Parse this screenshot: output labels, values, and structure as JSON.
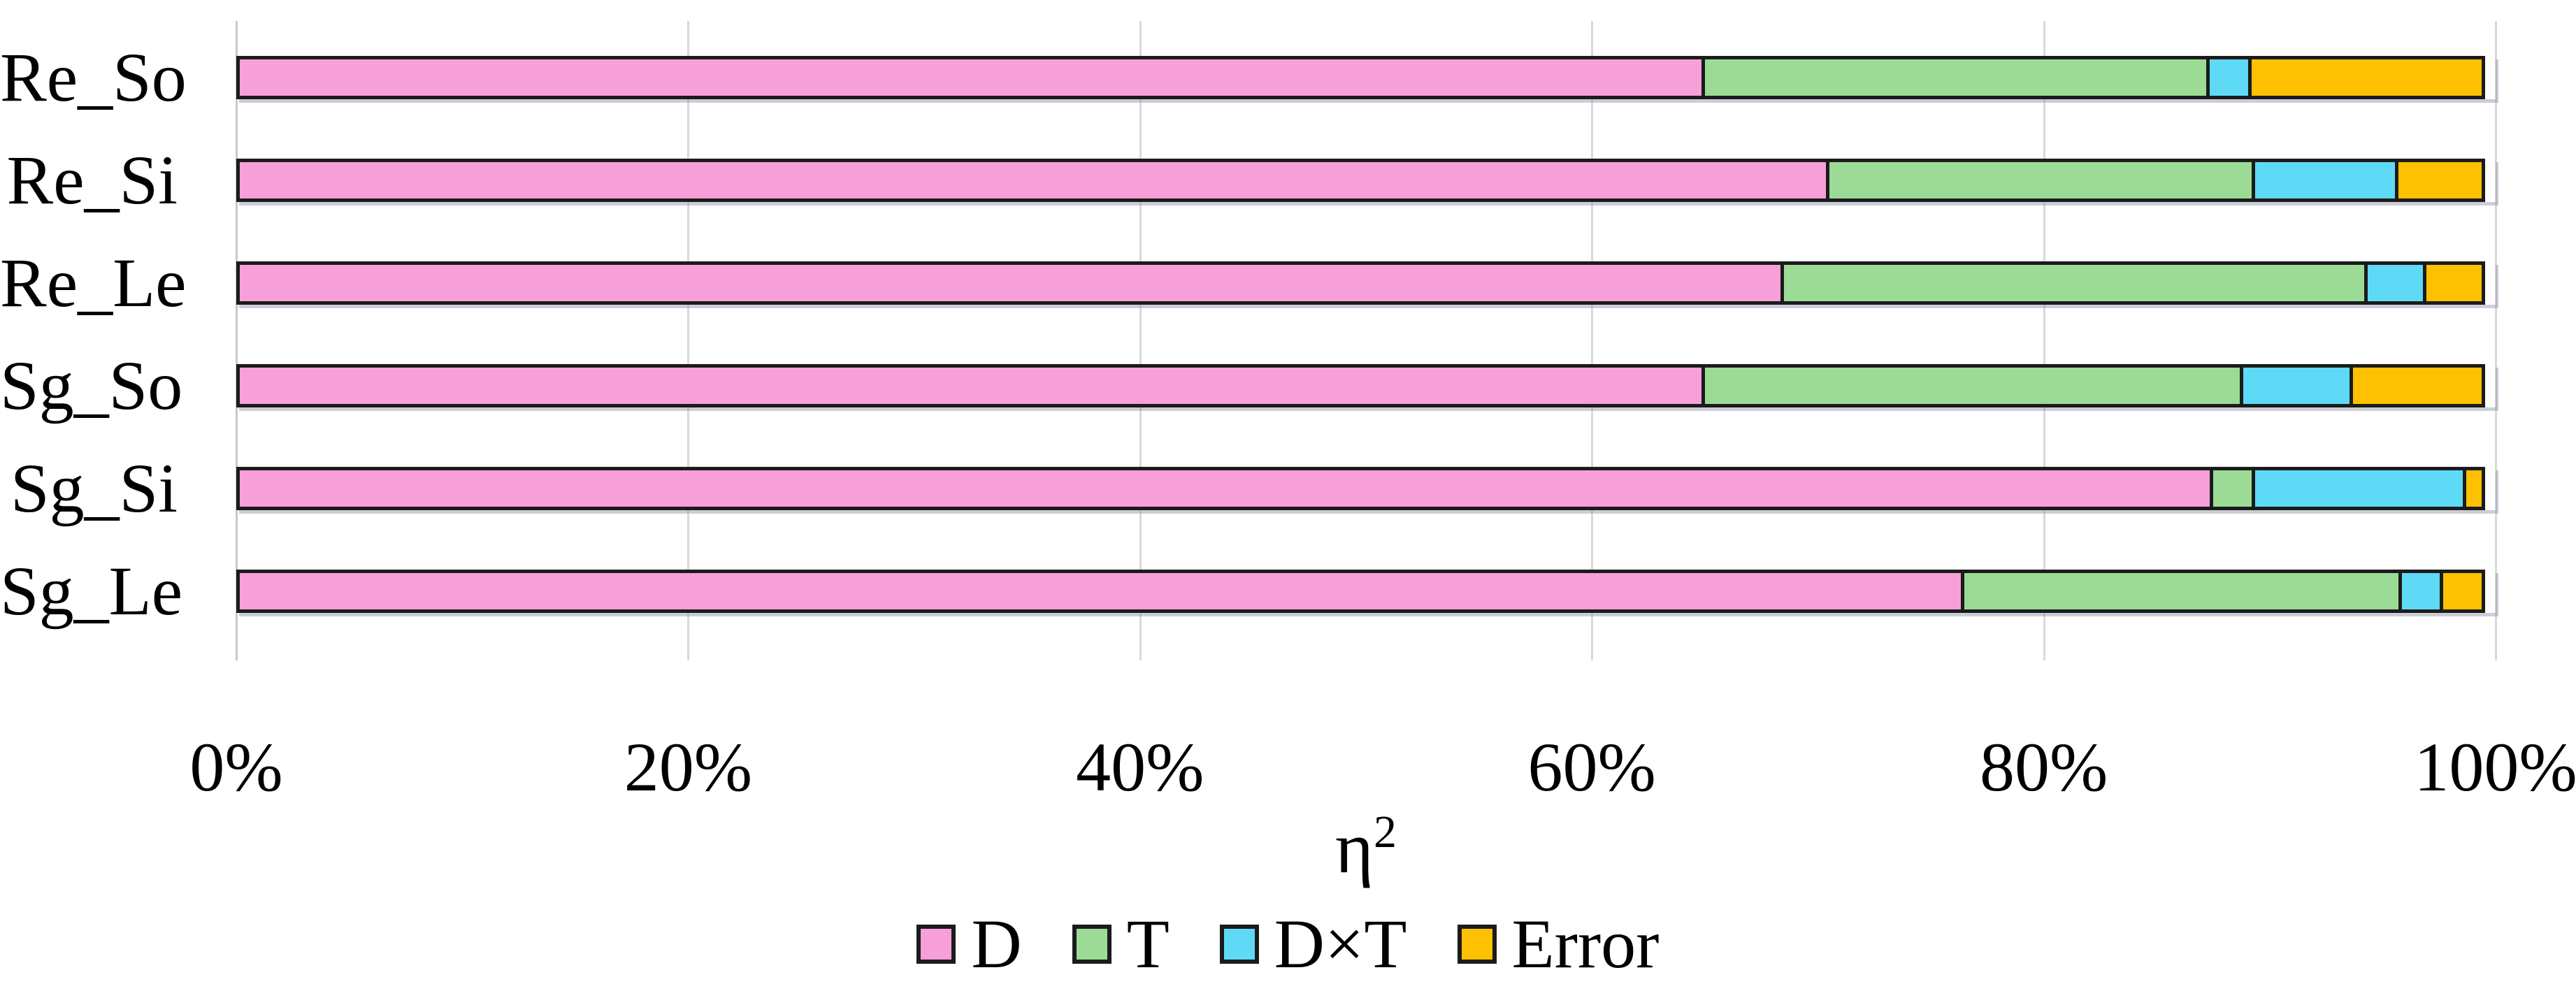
{
  "figure": {
    "xlabel_base": "η",
    "xlabel_exp": "2"
  },
  "chart_data": {
    "type": "bar",
    "orientation": "horizontal",
    "stacked": true,
    "unit": "percent",
    "title": "",
    "xlabel": "η²",
    "ylabel": "",
    "xlim": [
      0,
      100
    ],
    "xticks": [
      "0%",
      "20%",
      "40%",
      "60%",
      "80%",
      "100%"
    ],
    "grid": "vertical",
    "legend_position": "bottom",
    "categories": [
      "Re_So",
      "Re_Si",
      "Re_Le",
      "Sg_So",
      "Sg_Si",
      "Sg_Le"
    ],
    "series": [
      {
        "name": "D",
        "color": "#F79FD8",
        "values": [
          65,
          70.5,
          68.5,
          65,
          87.5,
          76.5
        ]
      },
      {
        "name": "T",
        "color": "#9BDB95",
        "values": [
          22.5,
          19,
          26,
          24,
          2,
          19.5
        ]
      },
      {
        "name": "D×T",
        "color": "#5EDAF7",
        "values": [
          2,
          6.5,
          2.75,
          5,
          9.5,
          2
        ]
      },
      {
        "name": "Error",
        "color": "#FEC101",
        "values": [
          10.5,
          4,
          2.75,
          6,
          1,
          2
        ]
      }
    ],
    "colors": {
      "bar_border": "#1b1b1b",
      "gridline": "#d9d9d9",
      "text": "#000000"
    }
  }
}
